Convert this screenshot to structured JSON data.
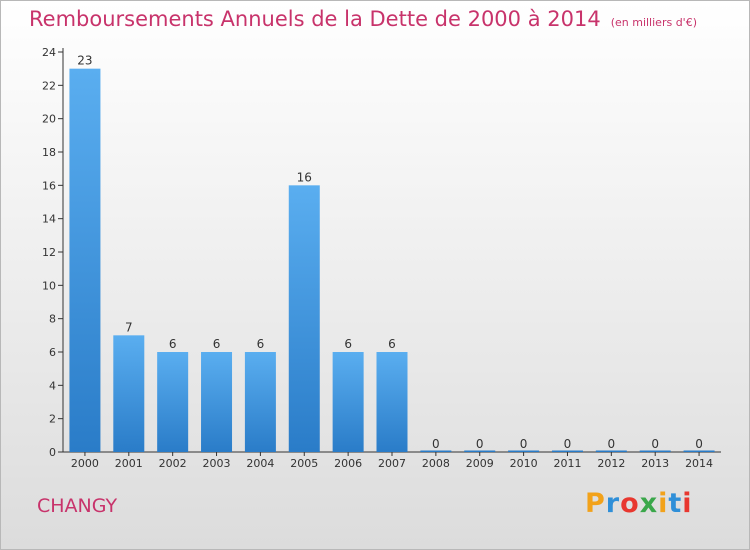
{
  "title": "Remboursements Annuels de la Dette de 2000 à 2014",
  "unit_note": "(en milliers d'€)",
  "location": "CHANGY",
  "brand": {
    "letters": [
      "P",
      "r",
      "o",
      "x",
      "i",
      "t",
      "i"
    ],
    "colors": [
      "#f2a21a",
      "#2f8fd8",
      "#e8372f",
      "#3aa74a",
      "#f2a21a",
      "#2f8fd8",
      "#e8372f"
    ]
  },
  "colors": {
    "bar_light": "#5aaef0",
    "bar_dark": "#2a7cc8",
    "title": "#c8336b",
    "axis": "#333333"
  },
  "chart_data": {
    "type": "bar",
    "categories": [
      "2000",
      "2001",
      "2002",
      "2003",
      "2004",
      "2005",
      "2006",
      "2007",
      "2008",
      "2009",
      "2010",
      "2011",
      "2012",
      "2013",
      "2014"
    ],
    "values": [
      23,
      7,
      6,
      6,
      6,
      16,
      6,
      6,
      0,
      0,
      0,
      0,
      0,
      0,
      0
    ],
    "data_labels": [
      "23",
      "7",
      "6",
      "6",
      "6",
      "16",
      "6",
      "6",
      "0",
      "0",
      "0",
      "0",
      "0",
      "0",
      "0"
    ],
    "ylim": [
      0,
      24
    ],
    "yticks": [
      0,
      2,
      4,
      6,
      8,
      10,
      12,
      14,
      16,
      18,
      20,
      22,
      24
    ],
    "grid": false,
    "legend": "none"
  }
}
